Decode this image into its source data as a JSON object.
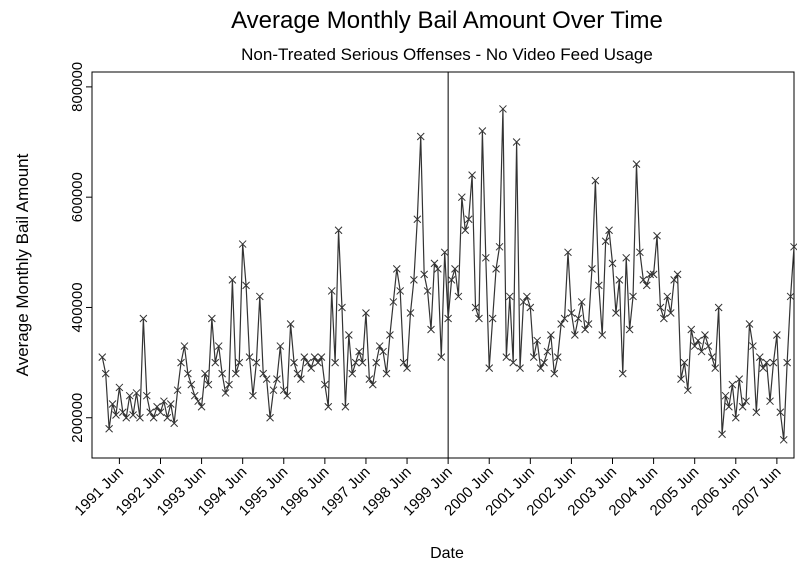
{
  "chart_data": {
    "type": "line",
    "title": "Average Monthly Bail Amount Over Time",
    "subtitle": "Non-Treated Serious Offenses - No Video Feed Usage",
    "x_label": "Date",
    "y_label": "Average Monthly Bail Amount",
    "x": [
      "1991-01",
      "1991-02",
      "1991-03",
      "1991-04",
      "1991-05",
      "1991-06",
      "1991-07",
      "1991-08",
      "1991-09",
      "1991-10",
      "1991-11",
      "1991-12",
      "1992-01",
      "1992-02",
      "1992-03",
      "1992-04",
      "1992-05",
      "1992-06",
      "1992-07",
      "1992-08",
      "1992-09",
      "1992-10",
      "1992-11",
      "1992-12",
      "1993-01",
      "1993-02",
      "1993-03",
      "1993-04",
      "1993-05",
      "1993-06",
      "1993-07",
      "1993-08",
      "1993-09",
      "1993-10",
      "1993-11",
      "1993-12",
      "1994-01",
      "1994-02",
      "1994-03",
      "1994-04",
      "1994-05",
      "1994-06",
      "1994-07",
      "1994-08",
      "1994-09",
      "1994-10",
      "1994-11",
      "1994-12",
      "1995-01",
      "1995-02",
      "1995-03",
      "1995-04",
      "1995-05",
      "1995-06",
      "1995-07",
      "1995-08",
      "1995-09",
      "1995-10",
      "1995-11",
      "1995-12",
      "1996-01",
      "1996-02",
      "1996-03",
      "1996-04",
      "1996-05",
      "1996-06",
      "1996-07",
      "1996-08",
      "1996-09",
      "1996-10",
      "1996-11",
      "1996-12",
      "1997-01",
      "1997-02",
      "1997-03",
      "1997-04",
      "1997-05",
      "1997-06",
      "1997-07",
      "1997-08",
      "1997-09",
      "1997-10",
      "1997-11",
      "1997-12",
      "1998-01",
      "1998-02",
      "1998-03",
      "1998-04",
      "1998-05",
      "1998-06",
      "1998-07",
      "1998-08",
      "1998-09",
      "1998-10",
      "1998-11",
      "1998-12",
      "1999-01",
      "1999-02",
      "1999-03",
      "1999-04",
      "1999-05",
      "1999-06",
      "1999-07",
      "1999-08",
      "1999-09",
      "1999-10",
      "1999-11",
      "1999-12",
      "2000-01",
      "2000-02",
      "2000-03",
      "2000-04",
      "2000-05",
      "2000-06",
      "2000-07",
      "2000-08",
      "2000-09",
      "2000-10",
      "2000-11",
      "2000-12",
      "2001-01",
      "2001-02",
      "2001-03",
      "2001-04",
      "2001-05",
      "2001-06",
      "2001-07",
      "2001-08",
      "2001-09",
      "2001-10",
      "2001-11",
      "2001-12",
      "2002-01",
      "2002-02",
      "2002-03",
      "2002-04",
      "2002-05",
      "2002-06",
      "2002-07",
      "2002-08",
      "2002-09",
      "2002-10",
      "2002-11",
      "2002-12",
      "2003-01",
      "2003-02",
      "2003-03",
      "2003-04",
      "2003-05",
      "2003-06",
      "2003-07",
      "2003-08",
      "2003-09",
      "2003-10",
      "2003-11",
      "2003-12",
      "2004-01",
      "2004-02",
      "2004-03",
      "2004-04",
      "2004-05",
      "2004-06",
      "2004-07",
      "2004-08",
      "2004-09",
      "2004-10",
      "2004-11",
      "2004-12",
      "2005-01",
      "2005-02",
      "2005-03",
      "2005-04",
      "2005-05",
      "2005-06",
      "2005-07",
      "2005-08",
      "2005-09",
      "2005-10",
      "2005-11",
      "2005-12",
      "2006-01",
      "2006-02",
      "2006-03",
      "2006-04",
      "2006-05",
      "2006-06",
      "2006-07",
      "2006-08",
      "2006-09",
      "2006-10",
      "2006-11",
      "2006-12",
      "2007-01",
      "2007-02",
      "2007-03",
      "2007-04",
      "2007-05",
      "2007-06",
      "2007-07",
      "2007-08",
      "2007-09",
      "2007-10",
      "2007-11"
    ],
    "series": [
      {
        "color": "#333333",
        "values": [
          310000,
          280000,
          180000,
          225000,
          205000,
          255000,
          210000,
          200000,
          240000,
          205000,
          245000,
          200000,
          380000,
          240000,
          210000,
          200000,
          220000,
          210000,
          230000,
          200000,
          225000,
          190000,
          250000,
          300000,
          330000,
          280000,
          260000,
          240000,
          230000,
          220000,
          280000,
          260000,
          380000,
          300000,
          330000,
          280000,
          245000,
          260000,
          450000,
          280000,
          300000,
          515000,
          440000,
          310000,
          240000,
          300000,
          420000,
          280000,
          270000,
          200000,
          250000,
          270000,
          330000,
          250000,
          240000,
          370000,
          300000,
          280000,
          270000,
          310000,
          300000,
          290000,
          310000,
          300000,
          310000,
          260000,
          220000,
          430000,
          300000,
          540000,
          400000,
          220000,
          350000,
          280000,
          300000,
          320000,
          300000,
          390000,
          270000,
          260000,
          300000,
          330000,
          320000,
          280000,
          350000,
          410000,
          470000,
          430000,
          300000,
          290000,
          390000,
          450000,
          560000,
          710000,
          460000,
          430000,
          360000,
          480000,
          470000,
          310000,
          500000,
          380000,
          450000,
          470000,
          420000,
          600000,
          540000,
          560000,
          640000,
          400000,
          380000,
          720000,
          490000,
          290000,
          380000,
          470000,
          510000,
          760000,
          310000,
          420000,
          300000,
          700000,
          290000,
          410000,
          420000,
          400000,
          310000,
          340000,
          290000,
          300000,
          320000,
          350000,
          280000,
          310000,
          370000,
          380000,
          500000,
          390000,
          350000,
          380000,
          410000,
          360000,
          370000,
          470000,
          630000,
          440000,
          350000,
          520000,
          540000,
          480000,
          390000,
          450000,
          280000,
          490000,
          360000,
          420000,
          660000,
          500000,
          450000,
          440000,
          460000,
          460000,
          530000,
          400000,
          380000,
          420000,
          390000,
          450000,
          460000,
          270000,
          300000,
          250000,
          360000,
          330000,
          340000,
          320000,
          350000,
          330000,
          310000,
          290000,
          400000,
          170000,
          240000,
          220000,
          260000,
          200000,
          270000,
          220000,
          230000,
          370000,
          330000,
          210000,
          310000,
          290000,
          300000,
          230000,
          300000,
          350000,
          210000,
          160000,
          300000,
          420000,
          510000
        ]
      }
    ],
    "xlim": [
      "1990-10",
      "2007-11"
    ],
    "xticks": [
      {
        "value": "1991-06",
        "label": "1991 Jun"
      },
      {
        "value": "1992-06",
        "label": "1992 Jun"
      },
      {
        "value": "1993-06",
        "label": "1993 Jun"
      },
      {
        "value": "1994-06",
        "label": "1994 Jun"
      },
      {
        "value": "1995-06",
        "label": "1995 Jun"
      },
      {
        "value": "1996-06",
        "label": "1996 Jun"
      },
      {
        "value": "1997-06",
        "label": "1997 Jun"
      },
      {
        "value": "1998-06",
        "label": "1998 Jun"
      },
      {
        "value": "1999-06",
        "label": "1999 Jun"
      },
      {
        "value": "2000-06",
        "label": "2000 Jun"
      },
      {
        "value": "2001-06",
        "label": "2001 Jun"
      },
      {
        "value": "2002-06",
        "label": "2002 Jun"
      },
      {
        "value": "2003-06",
        "label": "2003 Jun"
      },
      {
        "value": "2004-06",
        "label": "2004 Jun"
      },
      {
        "value": "2005-06",
        "label": "2005 Jun"
      },
      {
        "value": "2006-06",
        "label": "2006 Jun"
      },
      {
        "value": "2007-06",
        "label": "2007 Jun"
      }
    ],
    "ylim": [
      127000,
      827000
    ],
    "yticks": [
      200000,
      400000,
      600000,
      800000
    ],
    "reference_x": "1999-06",
    "grid": false
  }
}
